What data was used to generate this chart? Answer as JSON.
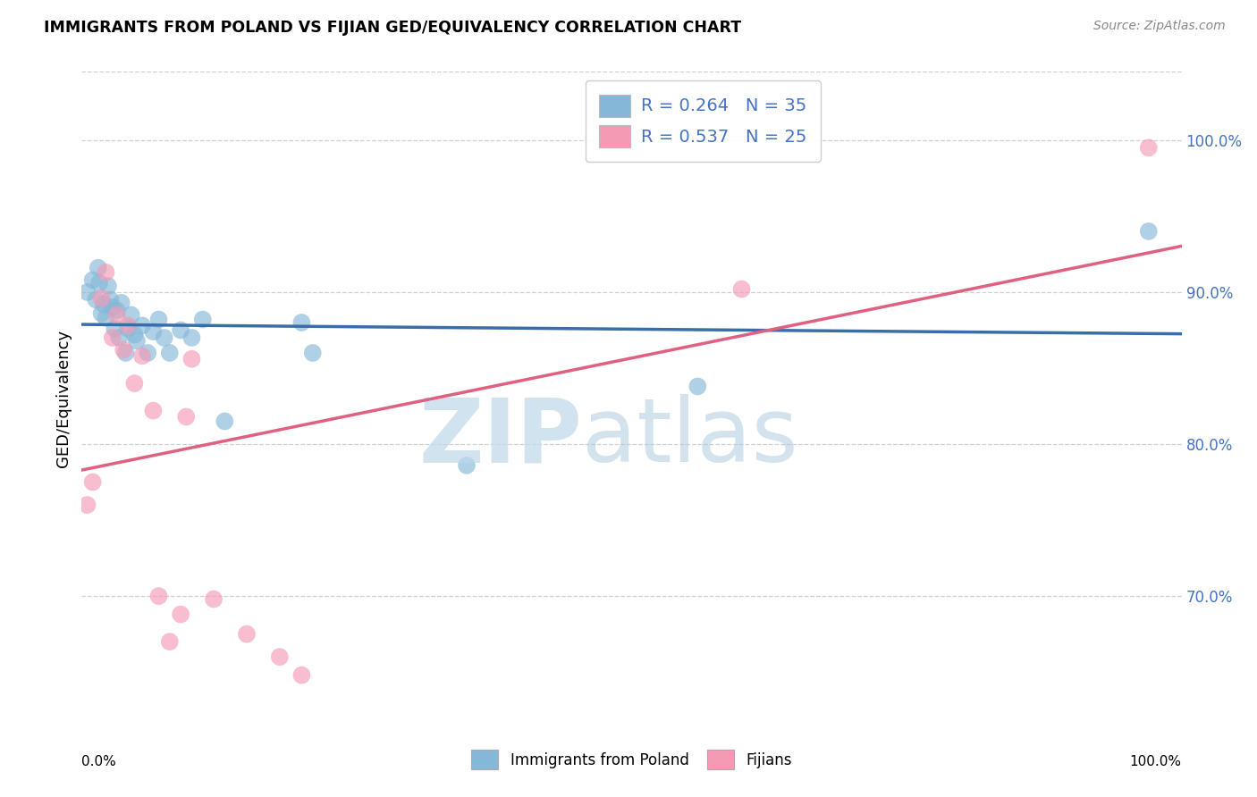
{
  "title": "IMMIGRANTS FROM POLAND VS FIJIAN GED/EQUIVALENCY CORRELATION CHART",
  "source": "Source: ZipAtlas.com",
  "ylabel": "GED/Equivalency",
  "xlim": [
    0.0,
    1.0
  ],
  "ylim": [
    0.615,
    1.045
  ],
  "right_ytick_vals": [
    0.7,
    0.8,
    0.9,
    1.0
  ],
  "right_ytick_labels": [
    "70.0%",
    "80.0%",
    "90.0%",
    "100.0%"
  ],
  "poland_color": "#85b8d8",
  "fijian_color": "#f59ab5",
  "poland_line_color": "#3a6ea8",
  "fijian_line_color": "#e06080",
  "poland_x": [
    0.005,
    0.01,
    0.013,
    0.015,
    0.016,
    0.018,
    0.02,
    0.022,
    0.024,
    0.026,
    0.028,
    0.03,
    0.032,
    0.034,
    0.036,
    0.04,
    0.042,
    0.045,
    0.048,
    0.05,
    0.055,
    0.06,
    0.065,
    0.07,
    0.075,
    0.08,
    0.09,
    0.1,
    0.11,
    0.13,
    0.2,
    0.21,
    0.35,
    0.56,
    0.97
  ],
  "poland_y": [
    0.9,
    0.908,
    0.895,
    0.916,
    0.906,
    0.886,
    0.892,
    0.883,
    0.904,
    0.895,
    0.89,
    0.876,
    0.888,
    0.87,
    0.893,
    0.86,
    0.876,
    0.885,
    0.872,
    0.868,
    0.878,
    0.86,
    0.874,
    0.882,
    0.87,
    0.86,
    0.875,
    0.87,
    0.882,
    0.815,
    0.88,
    0.86,
    0.786,
    0.838,
    0.94
  ],
  "fijian_x": [
    0.005,
    0.01,
    0.018,
    0.022,
    0.028,
    0.032,
    0.038,
    0.042,
    0.048,
    0.055,
    0.065,
    0.07,
    0.08,
    0.09,
    0.095,
    0.1,
    0.12,
    0.15,
    0.18,
    0.2,
    0.6,
    0.97
  ],
  "fijian_y": [
    0.76,
    0.775,
    0.896,
    0.913,
    0.87,
    0.885,
    0.862,
    0.878,
    0.84,
    0.858,
    0.822,
    0.7,
    0.67,
    0.688,
    0.818,
    0.856,
    0.698,
    0.675,
    0.66,
    0.648,
    0.902,
    0.995
  ],
  "grid_color": "#d0d0d0",
  "bg_color": "#ffffff"
}
